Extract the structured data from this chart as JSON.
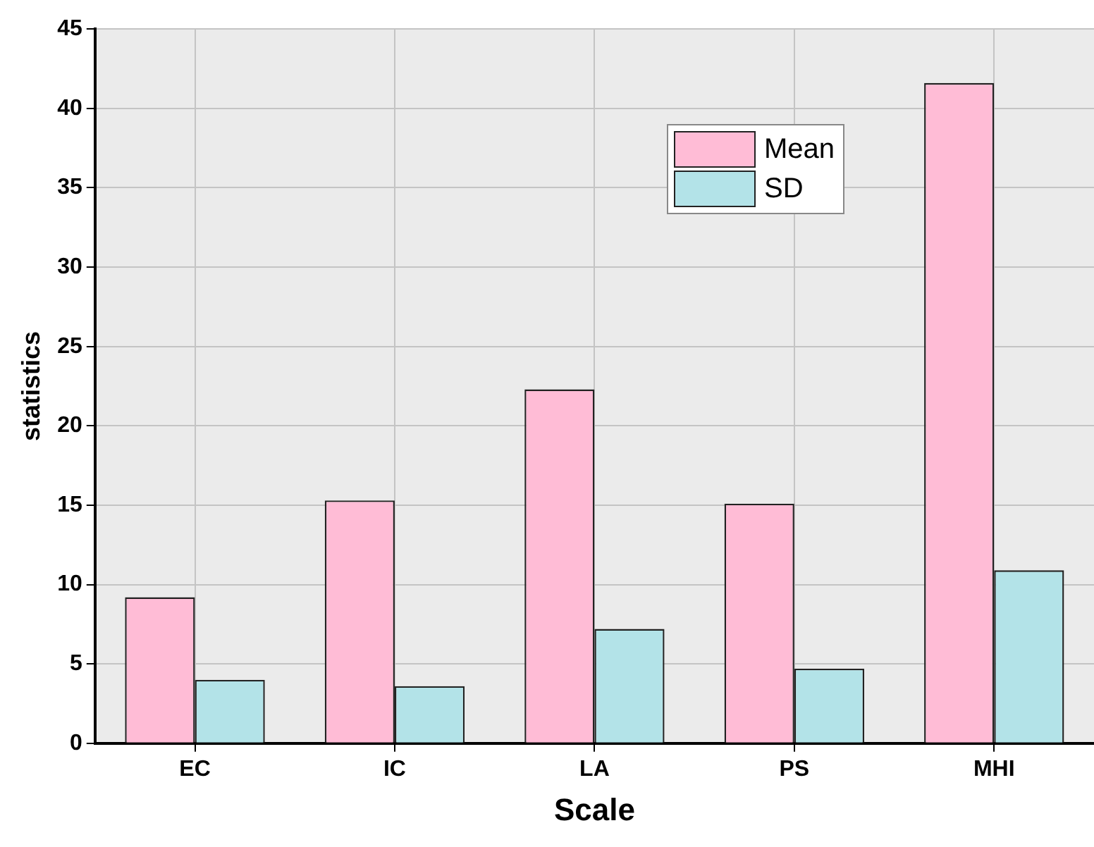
{
  "chart_data": {
    "type": "bar",
    "xlabel": "Scale",
    "ylabel": "statistics",
    "categories": [
      "EC",
      "IC",
      "LA",
      "PS",
      "MHI"
    ],
    "series": [
      {
        "name": "Mean",
        "color": "#ffbcd6",
        "values": [
          9.2,
          15.3,
          22.3,
          15.1,
          41.6
        ]
      },
      {
        "name": "SD",
        "color": "#b3e3e8",
        "values": [
          4.0,
          3.6,
          7.2,
          4.7,
          10.9
        ]
      }
    ],
    "ylim": [
      0,
      45
    ],
    "yticks": [
      0,
      5,
      10,
      15,
      20,
      25,
      30,
      35,
      40,
      45
    ],
    "grid": true,
    "legend": "top"
  }
}
